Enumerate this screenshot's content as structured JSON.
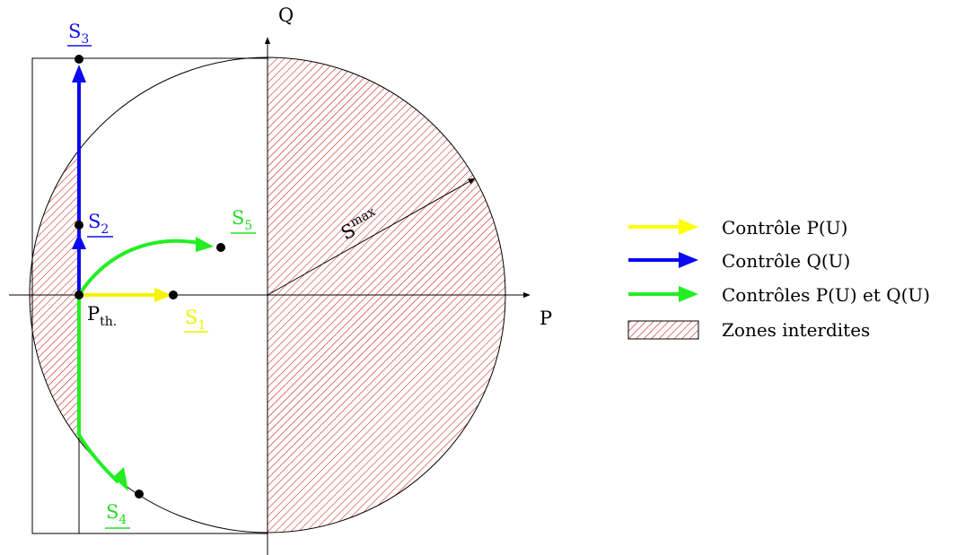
{
  "axes": {
    "p_label": "P",
    "q_label": "Q"
  },
  "radius_label": {
    "base": "S",
    "sup": "max"
  },
  "pth_label": {
    "base": "P",
    "sub": "th."
  },
  "points": [
    {
      "id": "s1",
      "base": "S",
      "sub": "1",
      "color": "#f2f200"
    },
    {
      "id": "s2",
      "base": "S",
      "sub": "2",
      "color": "#1010ee"
    },
    {
      "id": "s3",
      "base": "S",
      "sub": "3",
      "color": "#1010ee"
    },
    {
      "id": "s4",
      "base": "S",
      "sub": "4",
      "color": "#22dd22"
    },
    {
      "id": "s5",
      "base": "S",
      "sub": "5",
      "color": "#22dd22"
    }
  ],
  "legend": [
    {
      "label": "Contrôle P(U)",
      "color": "#ffff00",
      "kind": "arrow"
    },
    {
      "label": "Contrôle Q(U)",
      "color": "#0a0af0",
      "kind": "arrow"
    },
    {
      "label": "Contrôles P(U) et Q(U)",
      "color": "#22ee22",
      "kind": "arrow"
    },
    {
      "label": "Zones interdites",
      "color": "#cc0000",
      "kind": "hatch"
    }
  ],
  "colors": {
    "hatch": "#cc0000",
    "yellow": "#f4f400",
    "blue": "#0a0af0",
    "green": "#22ee22"
  }
}
